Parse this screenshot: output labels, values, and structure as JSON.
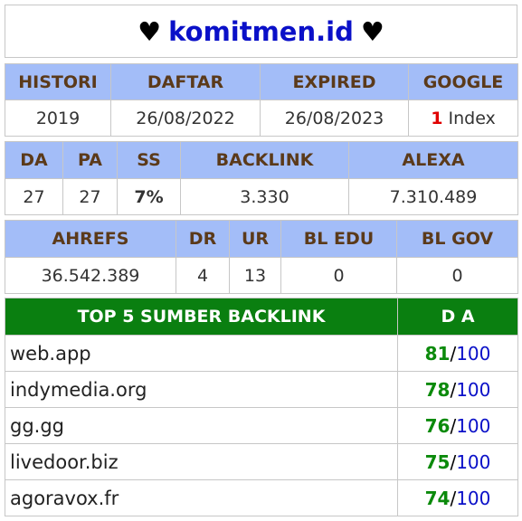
{
  "title": {
    "heart_left": "♥",
    "domain": "komitmen.id",
    "heart_right": "♥"
  },
  "table1": {
    "headers": [
      "HISTORI",
      "DAFTAR",
      "EXPIRED",
      "GOOGLE"
    ],
    "values": {
      "histori": "2019",
      "daftar": "26/08/2022",
      "expired": "26/08/2023",
      "google_count": "1",
      "google_label": "Index"
    }
  },
  "table2": {
    "headers": [
      "DA",
      "PA",
      "SS",
      "BACKLINK",
      "ALEXA"
    ],
    "values": [
      "27",
      "27",
      "7%",
      "3.330",
      "7.310.489"
    ]
  },
  "table3": {
    "headers": [
      "AHREFS",
      "DR",
      "UR",
      "BL EDU",
      "BL GOV"
    ],
    "values": [
      "36.542.389",
      "4",
      "13",
      "0",
      "0"
    ]
  },
  "backlinks": {
    "header_site": "TOP 5 SUMBER BACKLINK",
    "header_da": "D A",
    "rows": [
      {
        "site": "web.app",
        "da": "81",
        "max": "100"
      },
      {
        "site": "indymedia.org",
        "da": "78",
        "max": "100"
      },
      {
        "site": "gg.gg",
        "da": "76",
        "max": "100"
      },
      {
        "site": "livedoor.biz",
        "da": "75",
        "max": "100"
      },
      {
        "site": "agoravox.fr",
        "da": "74",
        "max": "100"
      }
    ]
  }
}
